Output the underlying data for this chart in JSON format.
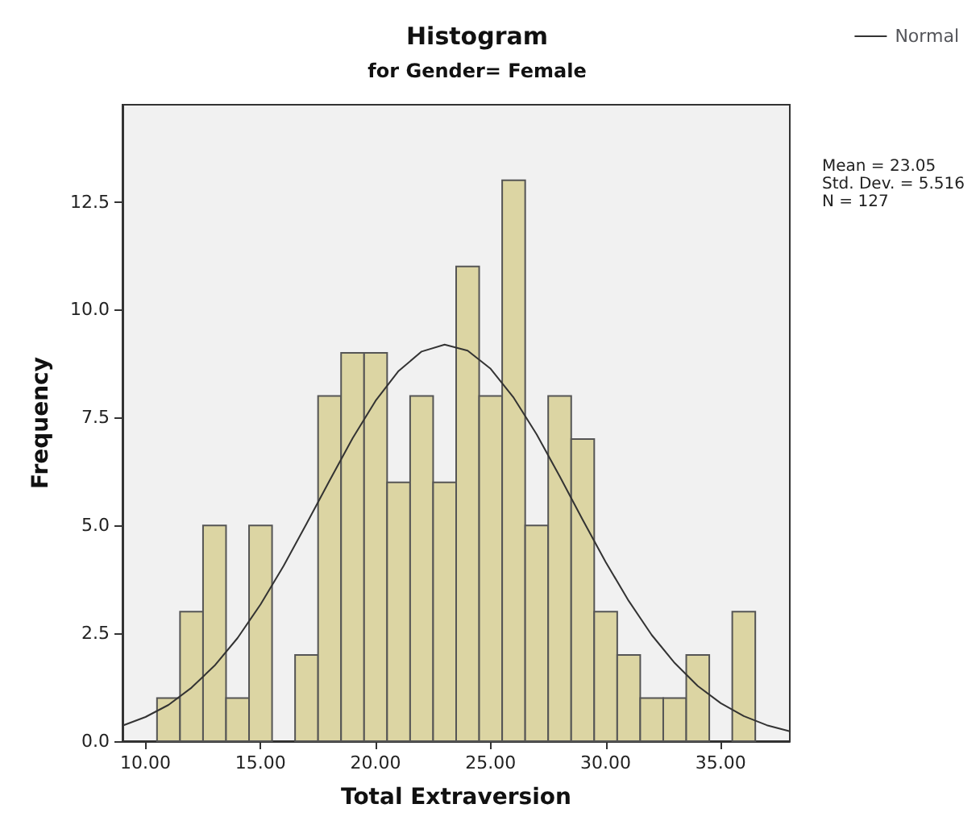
{
  "chart_data": {
    "type": "histogram",
    "title": "Histogram",
    "subtitle": "for Gender= Female",
    "xlabel": "Total Extraversion",
    "ylabel": "Frequency",
    "xlim": [
      9,
      38
    ],
    "ylim": [
      0,
      14.75
    ],
    "xticks": [
      {
        "value": 10,
        "label": "10.00"
      },
      {
        "value": 15,
        "label": "15.00"
      },
      {
        "value": 20,
        "label": "20.00"
      },
      {
        "value": 25,
        "label": "25.00"
      },
      {
        "value": 30,
        "label": "30.00"
      },
      {
        "value": 35,
        "label": "35.00"
      }
    ],
    "yticks": [
      {
        "value": 0,
        "label": "0.0"
      },
      {
        "value": 2.5,
        "label": "2.5"
      },
      {
        "value": 5,
        "label": "5.0"
      },
      {
        "value": 7.5,
        "label": "7.5"
      },
      {
        "value": 10,
        "label": "10.0"
      },
      {
        "value": 12.5,
        "label": "12.5"
      }
    ],
    "grid": false,
    "legend": "top right",
    "annotations": [
      "Mean = 23.05",
      "Std. Dev. = 5.516",
      "N = 127"
    ],
    "series": [
      {
        "color": "#dcd5a3",
        "bins": [
          10.5,
          11.5,
          12.5,
          13.5,
          14.5,
          15.5,
          16.5,
          17.5,
          18.5,
          19.5,
          20.5,
          21.5,
          22.5,
          23.5,
          24.5,
          25.5,
          26.5,
          27.5,
          28.5,
          29.5,
          30.5,
          31.5,
          32.5,
          33.5,
          34.5,
          35.5,
          36.5
        ],
        "values": [
          1,
          3,
          5,
          1,
          5,
          0,
          2,
          8,
          9,
          9,
          6,
          8,
          6,
          11,
          8,
          13,
          5,
          8,
          7,
          3,
          2,
          1,
          1,
          2,
          0,
          3
        ]
      },
      {
        "type": "line",
        "name": "Normal",
        "color": "#333333",
        "x": [
          9,
          10,
          11,
          12,
          13,
          14,
          15,
          16,
          17,
          18,
          19,
          20,
          21,
          22,
          23,
          24,
          25,
          26,
          27,
          28,
          29,
          30,
          31,
          32,
          33,
          34,
          35,
          36,
          37,
          38
        ],
        "values": [
          0.36,
          0.56,
          0.84,
          1.24,
          1.75,
          2.39,
          3.17,
          4.06,
          5.04,
          6.04,
          7.02,
          7.89,
          8.58,
          9.03,
          9.19,
          9.05,
          8.63,
          7.96,
          7.11,
          6.14,
          5.13,
          4.15,
          3.25,
          2.46,
          1.81,
          1.28,
          0.88,
          0.58,
          0.37,
          0.23
        ]
      }
    ]
  }
}
